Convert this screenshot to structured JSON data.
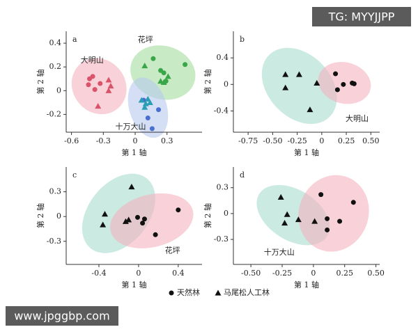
{
  "watermarks": {
    "top": "TG: MYYJJPP",
    "bottom": "www.jpggbp.com"
  },
  "legend": [
    {
      "name": "天然林",
      "marker": "circle",
      "color": "#111"
    },
    {
      "name": "马尾松人工林",
      "marker": "triangle",
      "color": "#111"
    }
  ],
  "chart_data": [
    {
      "type": "scatter",
      "panel_label": "a",
      "xlabel": "第 1 轴",
      "ylabel": "第 2 轴",
      "xlim": [
        -0.65,
        0.63
      ],
      "ylim": [
        -0.35,
        0.5
      ],
      "xticks": [
        -0.6,
        -0.3,
        0,
        0.3
      ],
      "yticks": [
        -0.2,
        0,
        0.2,
        0.4
      ],
      "groups": [
        {
          "label": "大明山",
          "color": "#f4b3c0",
          "series": [
            {
              "marker": "circle",
              "color": "#d9546a",
              "x": [
                -0.43,
                -0.4,
                -0.44,
                -0.38,
                -0.33
              ],
              "values": [
                0.1,
                0.12,
                0.05,
                0.01,
                0.06
              ]
            },
            {
              "marker": "triangle",
              "color": "#d9546a",
              "x": [
                -0.25,
                -0.23,
                -0.25,
                -0.35
              ],
              "values": [
                0.09,
                0.04,
                0.0,
                -0.13
              ]
            }
          ]
        },
        {
          "label": "花坪",
          "color": "#a4dc9c",
          "series": [
            {
              "marker": "circle",
              "color": "#3aa64a",
              "x": [
                0.17,
                0.24,
                0.27,
                0.47,
                0.29
              ],
              "values": [
                0.27,
                0.17,
                0.15,
                0.22,
                0.08
              ]
            },
            {
              "marker": "triangle",
              "color": "#3aa64a",
              "x": [
                0.09,
                0.31,
                0.24,
                0.27
              ],
              "values": [
                0.21,
                0.12,
                0.08,
                0.07
              ]
            }
          ]
        },
        {
          "label": "十万大山",
          "color": "#b7c8ee",
          "series": [
            {
              "marker": "circle",
              "color": "#4a6fd1",
              "x": [
                0.22,
                0.12,
                0.16,
                0.08
              ],
              "values": [
                -0.16,
                -0.23,
                -0.32,
                -0.08
              ]
            },
            {
              "marker": "triangle",
              "color": "#2a9fb4",
              "x": [
                0.06,
                0.1,
                0.14,
                0.09,
                0.12
              ],
              "values": [
                -0.08,
                -0.11,
                -0.1,
                -0.14,
                -0.07
              ]
            }
          ]
        }
      ]
    },
    {
      "type": "scatter",
      "panel_label": "b",
      "xlabel": "第 1 轴",
      "ylabel": "第 2 轴",
      "xlim": [
        -0.9,
        0.59
      ],
      "ylim": [
        -0.72,
        0.8
      ],
      "xticks": [
        -0.75,
        {
          "value": -0.5,
          "label": "-0.50"
        },
        -0.25,
        0,
        0.25,
        {
          "value": 0.5,
          "label": "0.50"
        }
      ],
      "yticks": [
        -0.4,
        0,
        0.4
      ],
      "groups": [
        {
          "color": "#a8dccf",
          "series": [
            {
              "marker": "triangle",
              "color": "#111",
              "x": [
                -0.37,
                -0.23,
                -0.37,
                -0.05,
                -0.12
              ],
              "values": [
                0.15,
                0.15,
                -0.05,
                0.02,
                -0.38
              ]
            }
          ]
        },
        {
          "label": "大明山",
          "color": "#f4b3c0",
          "series": [
            {
              "marker": "circle",
              "color": "#111",
              "x": [
                0.14,
                0.16,
                0.22,
                0.31,
                0.33
              ],
              "values": [
                0.16,
                -0.08,
                0.0,
                0.02,
                0.01
              ]
            }
          ]
        }
      ]
    },
    {
      "type": "scatter",
      "panel_label": "c",
      "xlabel": "第 1 轴",
      "ylabel": "第 2 轴",
      "xlim": [
        -0.73,
        0.64
      ],
      "ylim": [
        -0.58,
        0.6
      ],
      "xticks": [
        -0.4,
        0,
        0.4
      ],
      "yticks": [
        -0.3,
        0,
        0.3
      ],
      "groups": [
        {
          "color": "#a8dccf",
          "series": [
            {
              "marker": "triangle",
              "color": "#111",
              "x": [
                -0.07,
                -0.34,
                -0.36,
                -0.13,
                -0.1
              ],
              "values": [
                0.36,
                0.03,
                -0.1,
                -0.06,
                -0.04
              ]
            }
          ]
        },
        {
          "label": "花坪",
          "color": "#f4b3c0",
          "series": [
            {
              "marker": "circle",
              "color": "#111",
              "x": [
                -0.01,
                0.06,
                0.04,
                0.17,
                0.4
              ],
              "values": [
                -0.01,
                -0.03,
                -0.08,
                -0.22,
                0.08
              ]
            }
          ]
        }
      ]
    },
    {
      "type": "scatter",
      "panel_label": "d",
      "xlabel": "第 1 轴",
      "ylabel": "第 2 轴",
      "xlim": [
        -0.64,
        0.53
      ],
      "ylim": [
        -0.59,
        0.54
      ],
      "xticks": [
        {
          "value": -0.5,
          "label": "-0.50"
        },
        -0.25,
        0,
        0.25,
        {
          "value": 0.5,
          "label": "0.50"
        }
      ],
      "yticks": [
        -0.3,
        0,
        0.3
      ],
      "groups": [
        {
          "label": "十万大山",
          "color": "#a8dccf",
          "series": [
            {
              "marker": "triangle",
              "color": "#111",
              "x": [
                -0.26,
                -0.21,
                -0.23,
                -0.12,
                0.01
              ],
              "values": [
                0.19,
                -0.01,
                -0.11,
                -0.07,
                -0.09
              ]
            }
          ]
        },
        {
          "color": "#f4b3c0",
          "series": [
            {
              "marker": "circle",
              "color": "#111",
              "x": [
                0.06,
                0.11,
                0.11,
                0.21,
                0.32
              ],
              "values": [
                0.22,
                -0.06,
                -0.19,
                -0.09,
                0.13
              ]
            }
          ]
        }
      ]
    }
  ]
}
